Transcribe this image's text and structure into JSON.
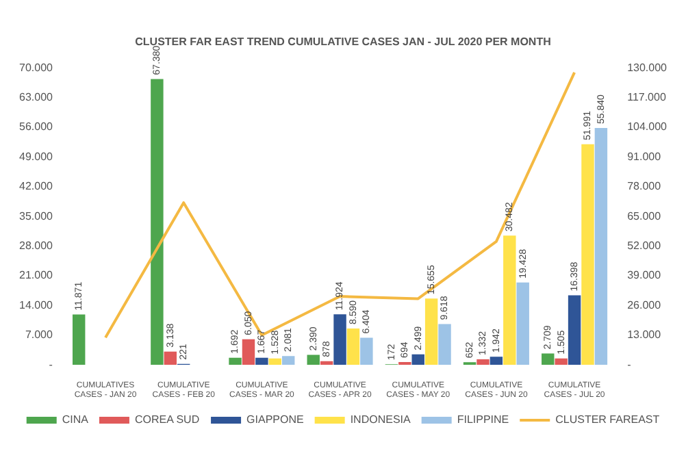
{
  "chart_data": {
    "type": "bar",
    "title": "CLUSTER FAR EAST TREND CUMULATIVE CASES JAN - JUL 2020 PER MONTH",
    "categories": [
      "CUMULATIVES CASES - JAN 20",
      "CUMULATIVE CASES - FEB 20",
      "CUMULATIVE CASES - MAR 20",
      "CUMULATIVE CASES - APR 20",
      "CUMULATIVE CASES - MAY 20",
      "CUMULATIVE CASES - JUN 20",
      "CUMULATIVE CASES - JUL 20"
    ],
    "series": [
      {
        "name": "CINA",
        "color": "#4ea64e",
        "values": [
          11871,
          67380,
          1692,
          2390,
          172,
          652,
          2709
        ],
        "value_labels": [
          "11.871",
          "67.380",
          "1.692",
          "2.390",
          "172",
          "652",
          "2.709"
        ]
      },
      {
        "name": "COREA SUD",
        "color": "#e05a5a",
        "values": [
          null,
          3138,
          6050,
          878,
          694,
          1332,
          1505
        ],
        "value_labels": [
          null,
          "3.138",
          "6.050",
          "878",
          "694",
          "1.332",
          "1.505"
        ]
      },
      {
        "name": "GIAPPONE",
        "color": "#2f5597",
        "values": [
          null,
          221,
          1667,
          11924,
          2499,
          1942,
          16398
        ],
        "value_labels": [
          null,
          "221",
          "1.667",
          "11.924",
          "2.499",
          "1.942",
          "16.398"
        ]
      },
      {
        "name": "INDONESIA",
        "color": "#ffe24a",
        "values": [
          null,
          null,
          1528,
          8590,
          15655,
          30482,
          51991
        ],
        "value_labels": [
          null,
          null,
          "1.528",
          "8.590",
          "15.655",
          "30.482",
          "51.991"
        ]
      },
      {
        "name": "FILIPPINE",
        "color": "#9dc3e6",
        "values": [
          null,
          null,
          2081,
          6404,
          9618,
          19428,
          55840
        ],
        "value_labels": [
          null,
          null,
          "2.081",
          "6.404",
          "9.618",
          "19.428",
          "55.840"
        ]
      },
      {
        "name": "CLUSTER FAREAST",
        "type": "line",
        "axis": "y2",
        "color": "#f4b942",
        "values": [
          12000,
          71000,
          13000,
          30000,
          29000,
          54000,
          128000
        ]
      }
    ],
    "ylim": [
      0,
      70000
    ],
    "yticks": [
      {
        "value": 0,
        "label": "-"
      },
      {
        "value": 7000,
        "label": "7.000"
      },
      {
        "value": 14000,
        "label": "14.000"
      },
      {
        "value": 21000,
        "label": "21.000"
      },
      {
        "value": 28000,
        "label": "28.000"
      },
      {
        "value": 35000,
        "label": "35.000"
      },
      {
        "value": 42000,
        "label": "42.000"
      },
      {
        "value": 49000,
        "label": "49.000"
      },
      {
        "value": 56000,
        "label": "56.000"
      },
      {
        "value": 63000,
        "label": "63.000"
      },
      {
        "value": 70000,
        "label": "70.000"
      }
    ],
    "y2lim": [
      0,
      130000
    ],
    "y2ticks": [
      {
        "value": 0,
        "label": "-"
      },
      {
        "value": 13000,
        "label": "13.000"
      },
      {
        "value": 26000,
        "label": "26.000"
      },
      {
        "value": 39000,
        "label": "39.000"
      },
      {
        "value": 52000,
        "label": "52.000"
      },
      {
        "value": 65000,
        "label": "65.000"
      },
      {
        "value": 78000,
        "label": "78.000"
      },
      {
        "value": 91000,
        "label": "91.000"
      },
      {
        "value": 104000,
        "label": "104.000"
      },
      {
        "value": 117000,
        "label": "117.000"
      },
      {
        "value": 130000,
        "label": "130.000"
      }
    ],
    "grid": false,
    "legend": "bottom",
    "marker": "none"
  }
}
